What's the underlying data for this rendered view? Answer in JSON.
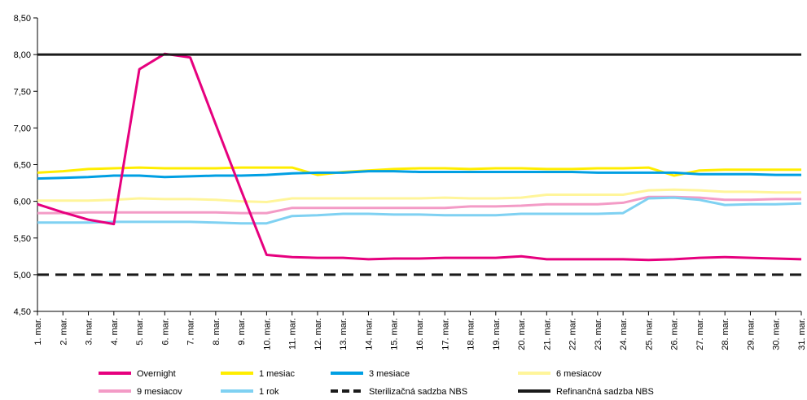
{
  "chart_data": {
    "type": "line",
    "title": "",
    "xlabel": "",
    "ylabel": "",
    "ylim": [
      4.5,
      8.5
    ],
    "yticks": [
      "4,50",
      "5,00",
      "5,50",
      "6,00",
      "6,50",
      "7,00",
      "7,50",
      "8,00",
      "8,50"
    ],
    "grid": false,
    "legend_position": "bottom",
    "categories": [
      "1. mar.",
      "2. mar.",
      "3. mar.",
      "4. mar.",
      "5. mar.",
      "6. mar.",
      "7. mar.",
      "8. mar.",
      "9. mar.",
      "10. mar.",
      "11. mar.",
      "12. mar.",
      "13. mar.",
      "14. mar.",
      "15. mar.",
      "16. mar.",
      "17. mar.",
      "18. mar.",
      "19. mar.",
      "20. mar.",
      "21. mar.",
      "22. mar.",
      "23. mar.",
      "24. mar.",
      "25. mar.",
      "26. mar.",
      "27. mar.",
      "28. mar.",
      "29. mar.",
      "30. mar.",
      "31. mar."
    ],
    "series": [
      {
        "name": "Overnight",
        "color": "#e6007e",
        "dash": "solid",
        "values": [
          5.96,
          5.85,
          5.75,
          5.69,
          7.8,
          8.01,
          7.96,
          7.05,
          6.15,
          5.27,
          5.24,
          5.23,
          5.23,
          5.21,
          5.22,
          5.22,
          5.23,
          5.23,
          5.23,
          5.25,
          5.21,
          5.21,
          5.21,
          5.21,
          5.2,
          5.21,
          5.23,
          5.24,
          5.23,
          5.22,
          5.21
        ]
      },
      {
        "name": "1 mesiac",
        "color": "#ffed00",
        "dash": "solid",
        "values": [
          6.39,
          6.41,
          6.44,
          6.45,
          6.46,
          6.45,
          6.45,
          6.45,
          6.46,
          6.46,
          6.46,
          6.36,
          6.4,
          6.42,
          6.44,
          6.45,
          6.45,
          6.44,
          6.45,
          6.45,
          6.44,
          6.44,
          6.45,
          6.45,
          6.46,
          6.35,
          6.42,
          6.43,
          6.43,
          6.43,
          6.43
        ]
      },
      {
        "name": "3 mesiace",
        "color": "#009fe3",
        "dash": "solid",
        "values": [
          6.31,
          6.32,
          6.33,
          6.35,
          6.35,
          6.33,
          6.34,
          6.35,
          6.35,
          6.36,
          6.38,
          6.39,
          6.39,
          6.41,
          6.41,
          6.4,
          6.4,
          6.4,
          6.4,
          6.4,
          6.4,
          6.4,
          6.39,
          6.39,
          6.39,
          6.39,
          6.37,
          6.37,
          6.37,
          6.36,
          6.36
        ]
      },
      {
        "name": "6 mesiacov",
        "color": "#fff59a",
        "dash": "solid",
        "values": [
          6.01,
          6.01,
          6.01,
          6.02,
          6.04,
          6.03,
          6.03,
          6.02,
          6.0,
          5.99,
          6.04,
          6.04,
          6.04,
          6.04,
          6.04,
          6.04,
          6.05,
          6.04,
          6.04,
          6.05,
          6.09,
          6.09,
          6.09,
          6.09,
          6.15,
          6.16,
          6.15,
          6.13,
          6.13,
          6.12,
          6.12
        ]
      },
      {
        "name": "9 mesiacov",
        "color": "#f39bc6",
        "dash": "solid",
        "values": [
          5.84,
          5.84,
          5.85,
          5.85,
          5.85,
          5.85,
          5.85,
          5.85,
          5.84,
          5.84,
          5.91,
          5.91,
          5.91,
          5.91,
          5.91,
          5.91,
          5.91,
          5.93,
          5.93,
          5.94,
          5.96,
          5.96,
          5.96,
          5.98,
          6.06,
          6.06,
          6.05,
          6.02,
          6.02,
          6.03,
          6.03
        ]
      },
      {
        "name": "1 rok",
        "color": "#7fd1f2",
        "dash": "solid",
        "values": [
          5.71,
          5.71,
          5.71,
          5.72,
          5.72,
          5.72,
          5.72,
          5.71,
          5.7,
          5.7,
          5.8,
          5.81,
          5.83,
          5.83,
          5.82,
          5.82,
          5.81,
          5.81,
          5.81,
          5.83,
          5.83,
          5.83,
          5.83,
          5.84,
          6.04,
          6.05,
          6.02,
          5.95,
          5.96,
          5.96,
          5.97
        ]
      },
      {
        "name": "Sterilizačná sadzba NBS",
        "color": "#1a1a1a",
        "dash": "dashed",
        "values": [
          5.0,
          5.0,
          5.0,
          5.0,
          5.0,
          5.0,
          5.0,
          5.0,
          5.0,
          5.0,
          5.0,
          5.0,
          5.0,
          5.0,
          5.0,
          5.0,
          5.0,
          5.0,
          5.0,
          5.0,
          5.0,
          5.0,
          5.0,
          5.0,
          5.0,
          5.0,
          5.0,
          5.0,
          5.0,
          5.0,
          5.0
        ]
      },
      {
        "name": "Refinančná sadzba NBS",
        "color": "#1a1a1a",
        "dash": "solid",
        "values": [
          8.0,
          8.0,
          8.0,
          8.0,
          8.0,
          8.0,
          8.0,
          8.0,
          8.0,
          8.0,
          8.0,
          8.0,
          8.0,
          8.0,
          8.0,
          8.0,
          8.0,
          8.0,
          8.0,
          8.0,
          8.0,
          8.0,
          8.0,
          8.0,
          8.0,
          8.0,
          8.0,
          8.0,
          8.0,
          8.0,
          8.0
        ]
      }
    ]
  }
}
